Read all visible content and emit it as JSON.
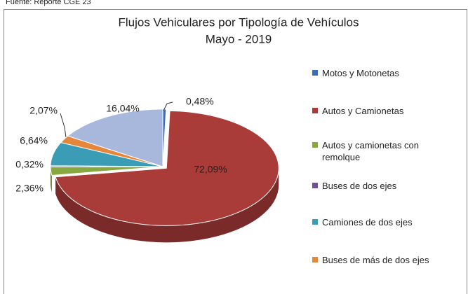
{
  "source": "Fuente: Reporte CGE 23",
  "chart_data": {
    "type": "pie3d",
    "title": "Flujos Vehiculares por Tipología de Vehículos",
    "subtitle": "Mayo - 2019",
    "categories": [
      "Motos y Motonetas",
      "Autos y Camionetas",
      "Autos y camionetas con remolque",
      "Buses de dos ejes",
      "Camiones de dos ejes",
      "Buses de más de dos ejes",
      null
    ],
    "values": [
      0.48,
      72.09,
      2.36,
      0.32,
      6.64,
      2.07,
      16.04
    ],
    "value_labels": [
      "0,48%",
      "72,09%",
      "2,36%",
      "0,32%",
      "6,64%",
      "2,07%",
      "16,04%"
    ],
    "colors": [
      "#3d6fb6",
      "#a93b38",
      "#86a83e",
      "#6e4f96",
      "#3b9cb5",
      "#e4873a",
      "#a7b8dc"
    ]
  }
}
